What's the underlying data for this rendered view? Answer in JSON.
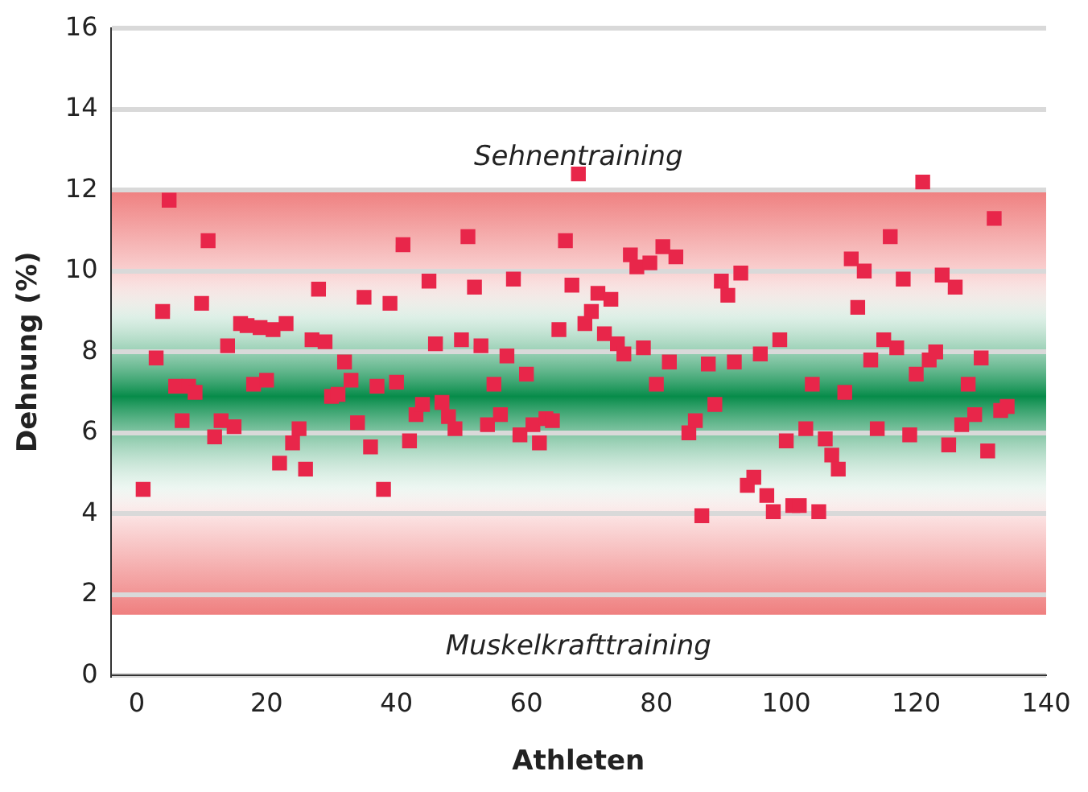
{
  "chart_data": {
    "type": "scatter",
    "xlabel": "Athleten",
    "ylabel": "Dehnung (%)",
    "xlim": [
      -4,
      140
    ],
    "xticks": [
      0,
      20,
      40,
      60,
      80,
      100,
      120,
      140
    ],
    "ylim": [
      0,
      16
    ],
    "yticks": [
      0,
      2,
      4,
      6,
      8,
      10,
      12,
      14,
      16
    ],
    "grid": "y",
    "marker": "square",
    "legend": false,
    "bands": [
      {
        "axis": "y",
        "from": 1.5,
        "to": 12,
        "color": "#ef7f7f"
      },
      {
        "axis": "y",
        "from": 3.8,
        "to": 10,
        "color": "#078c4a"
      }
    ],
    "annotations": [
      "Sehnentraining",
      "Muskelkrafttraining"
    ],
    "series": [
      {
        "color": "#e8264a",
        "x": [
          1,
          3,
          4,
          5,
          6,
          7,
          8,
          9,
          10,
          11,
          12,
          13,
          14,
          15,
          16,
          17,
          18,
          19,
          20,
          21,
          22,
          23,
          24,
          25,
          26,
          27,
          28,
          29,
          30,
          31,
          32,
          33,
          34,
          35,
          36,
          37,
          38,
          39,
          40,
          41,
          42,
          43,
          44,
          45,
          46,
          47,
          48,
          49,
          50,
          51,
          52,
          53,
          54,
          55,
          56,
          57,
          58,
          59,
          60,
          61,
          62,
          63,
          64,
          65,
          66,
          67,
          68,
          69,
          70,
          71,
          72,
          73,
          74,
          75,
          76,
          77,
          78,
          79,
          80,
          81,
          82,
          83,
          85,
          86,
          87,
          88,
          89,
          90,
          91,
          92,
          93,
          94,
          95,
          96,
          97,
          98,
          99,
          100,
          101,
          102,
          103,
          104,
          105,
          106,
          107,
          108,
          109,
          110,
          111,
          112,
          113,
          114,
          115,
          116,
          117,
          118,
          119,
          120,
          121,
          122,
          123,
          124,
          125,
          126,
          127,
          128,
          129,
          130,
          131,
          132,
          133,
          134
        ],
        "values": [
          4.6,
          7.85,
          9,
          11.75,
          7.15,
          6.3,
          7.15,
          7,
          9.2,
          10.75,
          5.9,
          6.3,
          8.15,
          6.15,
          8.7,
          8.65,
          7.2,
          8.6,
          7.3,
          8.55,
          5.25,
          8.7,
          5.75,
          6.1,
          5.1,
          8.3,
          9.55,
          8.25,
          6.9,
          6.95,
          7.75,
          7.3,
          6.25,
          9.35,
          5.65,
          7.15,
          4.6,
          9.2,
          7.25,
          10.65,
          5.8,
          6.45,
          6.7,
          9.75,
          8.2,
          6.75,
          6.4,
          6.1,
          8.3,
          10.85,
          9.6,
          8.15,
          6.2,
          7.2,
          6.45,
          7.9,
          9.8,
          5.95,
          7.45,
          6.2,
          5.75,
          6.35,
          6.3,
          8.55,
          10.75,
          9.65,
          12.4,
          8.7,
          9,
          9.45,
          8.45,
          9.3,
          8.2,
          7.95,
          10.4,
          10.1,
          8.1,
          10.2,
          7.2,
          10.6,
          7.75,
          10.35,
          6,
          6.3,
          3.95,
          7.7,
          6.7,
          9.75,
          9.4,
          7.75,
          9.95,
          4.7,
          4.9,
          7.95,
          4.45,
          4.05,
          8.3,
          5.8,
          4.2,
          4.2,
          6.1,
          7.2,
          4.05,
          5.85,
          5.45,
          5.1,
          7,
          10.3,
          9.1,
          10,
          7.8,
          6.1,
          8.3,
          10.85,
          8.1,
          9.8,
          5.95,
          7.45,
          12.2,
          7.8,
          8,
          9.9,
          5.7,
          9.6,
          6.2,
          7.2,
          6.45,
          7.85,
          5.55,
          11.3,
          6.55,
          6.65
        ]
      }
    ]
  }
}
